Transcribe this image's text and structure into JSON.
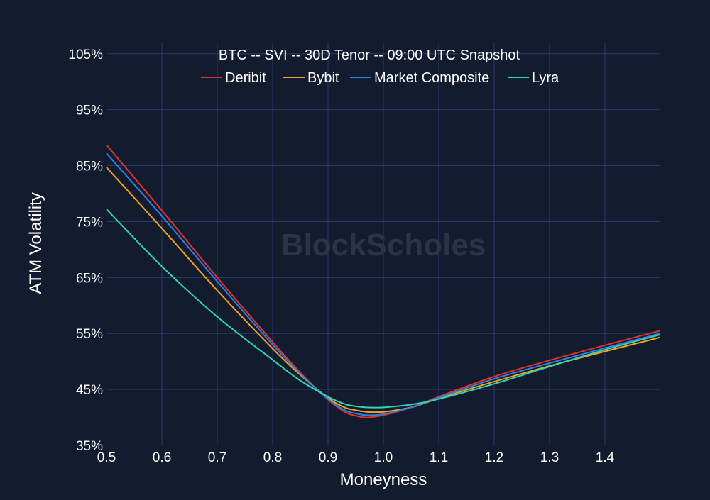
{
  "colors": {
    "background": "#131c2e",
    "grid": "#2a3a6b",
    "text": "#ffffff",
    "watermark": "#2b3445"
  },
  "watermark": "BlockScholes",
  "chart_data": {
    "type": "line",
    "title": "BTC -- SVI -- 30D Tenor -- 09:00 UTC Snapshot",
    "xlabel": "Moneyness",
    "ylabel": "ATM Volatility",
    "xlim": [
      0.5,
      1.5
    ],
    "ylim": [
      35,
      107
    ],
    "x_ticks": [
      0.5,
      0.6,
      0.7,
      0.8,
      0.9,
      1.0,
      1.1,
      1.2,
      1.3,
      1.4
    ],
    "x_tick_labels": [
      "0.5",
      "0.6",
      "0.7",
      "0.8",
      "0.9",
      "1.0",
      "1.1",
      "1.2",
      "1.3",
      "1.4"
    ],
    "y_ticks": [
      35,
      45,
      55,
      65,
      75,
      85,
      95,
      105
    ],
    "y_tick_labels": [
      "35%",
      "45%",
      "55%",
      "65%",
      "75%",
      "85%",
      "95%",
      "105%"
    ],
    "grid": true,
    "legend_position": "top-center",
    "series": [
      {
        "name": "Deribit",
        "color": "#e0302f",
        "x": [
          0.5,
          0.6,
          0.7,
          0.8,
          0.85,
          0.9,
          0.93,
          0.95,
          0.97,
          1.0,
          1.05,
          1.1,
          1.2,
          1.3,
          1.4,
          1.5
        ],
        "y": [
          88.7,
          77.0,
          65.0,
          53.5,
          48.0,
          43.2,
          41.0,
          40.3,
          40.0,
          40.4,
          41.8,
          43.7,
          47.3,
          50.2,
          52.9,
          55.5
        ]
      },
      {
        "name": "Bybit",
        "color": "#f2a51a",
        "x": [
          0.5,
          0.6,
          0.7,
          0.8,
          0.85,
          0.9,
          0.93,
          0.95,
          0.97,
          1.0,
          1.05,
          1.1,
          1.2,
          1.3,
          1.4,
          1.5
        ],
        "y": [
          84.7,
          73.8,
          62.7,
          52.3,
          47.6,
          43.5,
          41.8,
          41.3,
          41.0,
          41.0,
          41.8,
          43.4,
          46.4,
          49.2,
          51.8,
          54.3
        ]
      },
      {
        "name": "Market Composite",
        "color": "#2f7fe8",
        "x": [
          0.5,
          0.6,
          0.7,
          0.8,
          0.85,
          0.9,
          0.93,
          0.95,
          0.97,
          1.0,
          1.05,
          1.1,
          1.2,
          1.3,
          1.4,
          1.5
        ],
        "y": [
          87.2,
          76.0,
          64.3,
          53.0,
          47.8,
          43.3,
          41.3,
          40.7,
          40.4,
          40.6,
          41.8,
          43.5,
          46.9,
          49.7,
          52.4,
          55.0
        ]
      },
      {
        "name": "Lyra",
        "color": "#2fd6b0",
        "x": [
          0.5,
          0.6,
          0.7,
          0.8,
          0.85,
          0.9,
          0.93,
          0.95,
          0.97,
          1.0,
          1.05,
          1.1,
          1.2,
          1.3,
          1.4,
          1.5
        ],
        "y": [
          77.2,
          67.0,
          58.0,
          50.3,
          46.6,
          43.7,
          42.4,
          42.0,
          41.8,
          41.8,
          42.3,
          43.3,
          46.0,
          49.1,
          52.1,
          54.8
        ]
      }
    ]
  }
}
